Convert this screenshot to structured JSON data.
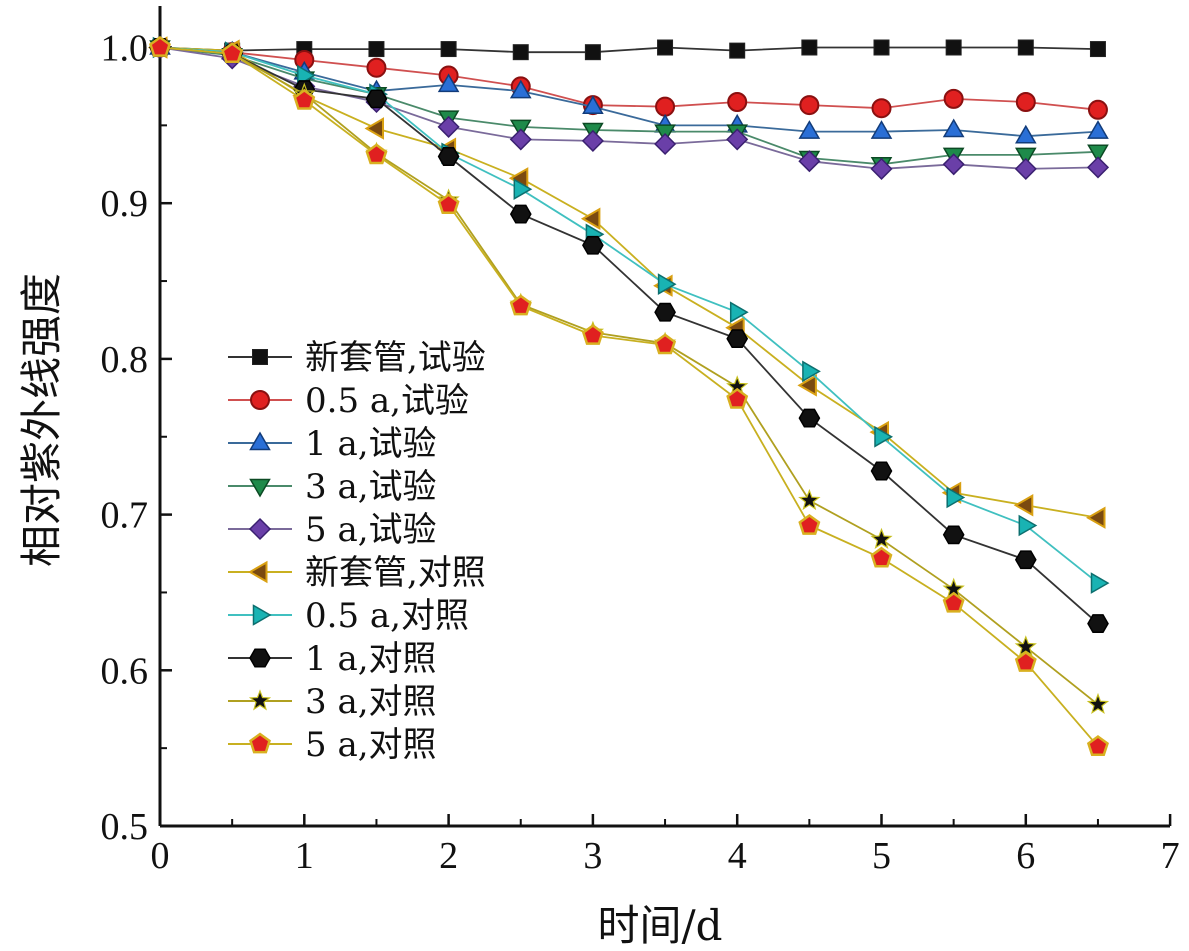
{
  "chart_data": {
    "type": "line",
    "title": "",
    "xlabel": "时间/d",
    "ylabel": "相对紫外线强度",
    "xlim": [
      0,
      7
    ],
    "ylim": [
      0.5,
      1.02
    ],
    "x_ticks": [
      "0",
      "1",
      "2",
      "3",
      "4",
      "5",
      "6",
      "7"
    ],
    "y_ticks": [
      "0.5",
      "0.6",
      "0.7",
      "0.8",
      "0.9",
      "1.0"
    ],
    "grid": false,
    "legend_position": "center-left",
    "x": [
      0,
      0.5,
      1,
      1.5,
      2,
      2.5,
      3,
      3.5,
      4,
      4.5,
      5,
      5.5,
      6,
      6.5
    ],
    "series": [
      {
        "name": "新套管,试验",
        "marker": "square",
        "color": "#111111",
        "line_color": "#333333",
        "values": [
          1.0,
          0.998,
          0.999,
          0.999,
          0.999,
          0.997,
          0.997,
          1.0,
          0.998,
          1.0,
          1.0,
          1.0,
          1.0,
          0.999
        ]
      },
      {
        "name": "0.5 a,试验",
        "marker": "circle",
        "color": "#e02020",
        "line_color": "#d05050",
        "values": [
          1.0,
          0.997,
          0.992,
          0.987,
          0.982,
          0.975,
          0.963,
          0.962,
          0.965,
          0.963,
          0.961,
          0.967,
          0.965,
          0.96
        ]
      },
      {
        "name": "1 a,试验",
        "marker": "triangle-up",
        "color": "#2a6fd6",
        "line_color": "#3a6a9a",
        "values": [
          1.0,
          0.997,
          0.984,
          0.972,
          0.976,
          0.972,
          0.962,
          0.95,
          0.95,
          0.946,
          0.946,
          0.947,
          0.943,
          0.946
        ]
      },
      {
        "name": "3 a,试验",
        "marker": "triangle-down",
        "color": "#1e8a4a",
        "line_color": "#4a8a6a",
        "values": [
          1.0,
          0.995,
          0.98,
          0.97,
          0.955,
          0.949,
          0.947,
          0.946,
          0.946,
          0.929,
          0.925,
          0.931,
          0.931,
          0.933
        ]
      },
      {
        "name": "5 a,试验",
        "marker": "diamond",
        "color": "#6a3fa8",
        "line_color": "#7a6a9a",
        "values": [
          1.0,
          0.993,
          0.975,
          0.965,
          0.949,
          0.941,
          0.94,
          0.938,
          0.941,
          0.927,
          0.922,
          0.925,
          0.922,
          0.923
        ]
      },
      {
        "name": "新套管,对照",
        "marker": "triangle-left",
        "color": "#d9a012",
        "line_color": "#c9b020",
        "values": [
          1.0,
          0.998,
          0.969,
          0.948,
          0.935,
          0.916,
          0.89,
          0.847,
          0.82,
          0.783,
          0.753,
          0.714,
          0.706,
          0.698
        ]
      },
      {
        "name": "0.5 a,对照",
        "marker": "triangle-right",
        "color": "#19b3b3",
        "line_color": "#40c0c0",
        "values": [
          1.0,
          0.997,
          0.982,
          0.97,
          0.932,
          0.909,
          0.88,
          0.848,
          0.83,
          0.792,
          0.75,
          0.711,
          0.693,
          0.656
        ]
      },
      {
        "name": "1 a,对照",
        "marker": "hexagon",
        "color": "#111111",
        "line_color": "#333333",
        "values": [
          1.0,
          0.996,
          0.973,
          0.967,
          0.93,
          0.893,
          0.873,
          0.83,
          0.813,
          0.762,
          0.728,
          0.687,
          0.671,
          0.63
        ]
      },
      {
        "name": "3 a,对照",
        "marker": "star",
        "color": "#111111",
        "line_color": "#b0a020",
        "values": [
          1.0,
          0.996,
          0.97,
          0.932,
          0.902,
          0.835,
          0.817,
          0.81,
          0.782,
          0.709,
          0.684,
          0.652,
          0.615,
          0.578
        ]
      },
      {
        "name": "5 a,对照",
        "marker": "pentagon",
        "color": "#e02020",
        "line_color": "#c8b020",
        "values": [
          1.0,
          0.996,
          0.966,
          0.931,
          0.899,
          0.834,
          0.815,
          0.809,
          0.774,
          0.693,
          0.672,
          0.643,
          0.605,
          0.551
        ]
      }
    ]
  }
}
